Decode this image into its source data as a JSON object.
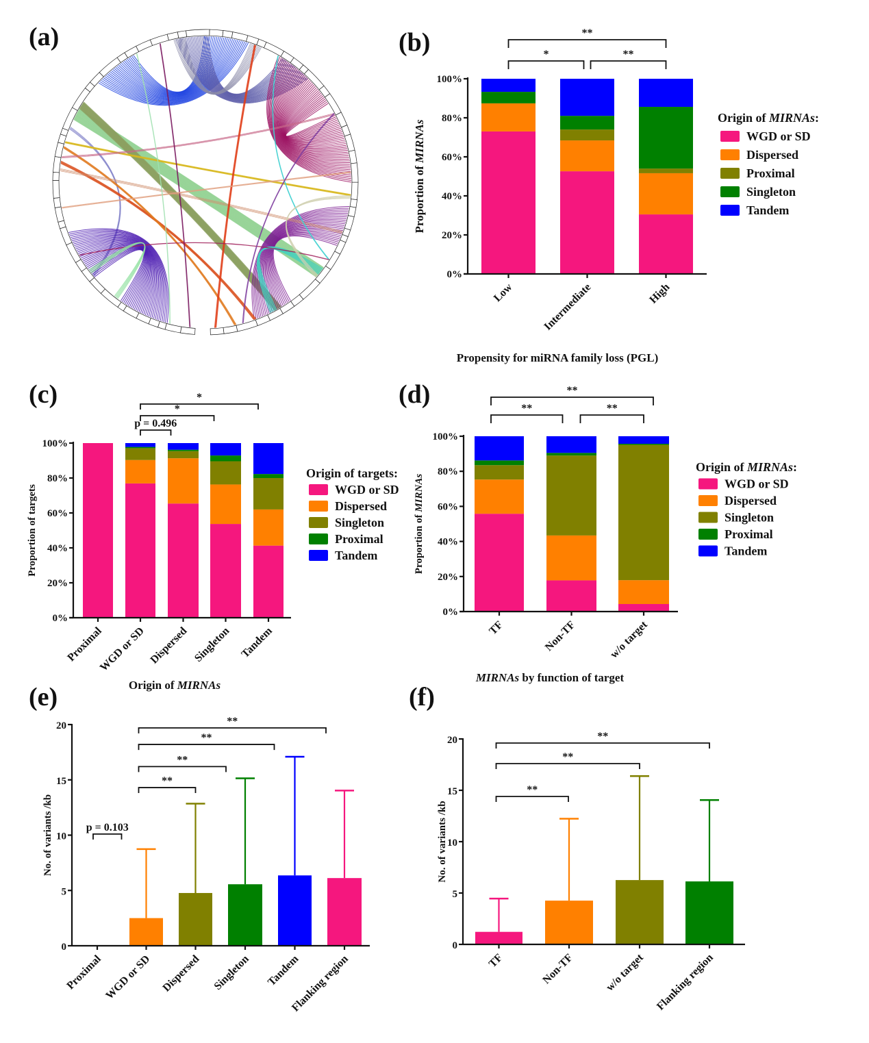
{
  "figure": {
    "panels": [
      "(a)",
      "(b)",
      "(c)",
      "(d)",
      "(e)",
      "(f)"
    ]
  },
  "colors": {
    "wgd": "#F5177E",
    "dispersed": "#FF8000",
    "olive": "#808000",
    "green": "#008000",
    "tandem": "#0000FF"
  },
  "chart_data": [
    {
      "id": "a",
      "type": "other",
      "description": "Circos plot of chromosomal segments with colored links between MIRNA loci",
      "title": ""
    },
    {
      "id": "b",
      "type": "bar",
      "stacked": true,
      "title": "",
      "xlabel": "Propensity for miRNA family loss (PGL)",
      "ylabel_prefix": "Proportion of ",
      "ylabel_italic": "MIRNAs",
      "ylim": [
        0,
        100
      ],
      "yticks": [
        "0%",
        "20%",
        "40%",
        "60%",
        "80%",
        "100%"
      ],
      "categories": [
        "Low",
        "Intermediate",
        "High"
      ],
      "legend_title_prefix": "Origin of ",
      "legend_title_italic": "MIRNAs",
      "legend_title_suffix": ":",
      "legend_position": "right",
      "series": [
        {
          "name": "WGD or SD",
          "color": "#F5177E",
          "values": [
            73.0,
            52.6,
            30.5
          ]
        },
        {
          "name": "Dispersed",
          "color": "#FF8000",
          "values": [
            14.4,
            15.8,
            21.1
          ]
        },
        {
          "name": "Proximal",
          "color": "#808000",
          "values": [
            0.0,
            5.6,
            2.4
          ]
        },
        {
          "name": "Singleton",
          "color": "#008000",
          "values": [
            5.9,
            7.0,
            31.6
          ]
        },
        {
          "name": "Tandem",
          "color": "#0000FF",
          "values": [
            6.7,
            19.0,
            14.4
          ]
        }
      ],
      "significance": [
        {
          "from": 0,
          "to": 1,
          "label": "*",
          "level": 1
        },
        {
          "from": 1,
          "to": 2,
          "label": "**",
          "level": 1
        },
        {
          "from": 0,
          "to": 2,
          "label": "**",
          "level": 2
        }
      ]
    },
    {
      "id": "c",
      "type": "bar",
      "stacked": true,
      "title": "",
      "xlabel_prefix": "Origin of ",
      "xlabel_italic": "MIRNAs",
      "ylabel": "Proportion of targets",
      "ylim": [
        0,
        100
      ],
      "yticks": [
        "0%",
        "20%",
        "40%",
        "60%",
        "80%",
        "100%"
      ],
      "categories": [
        "Proximal",
        "WGD or SD",
        "Dispersed",
        "Singleton",
        "Tandem"
      ],
      "legend_title": "Origin of targets:",
      "legend_position": "right",
      "series": [
        {
          "name": "WGD or SD",
          "color": "#F5177E",
          "values": [
            100.0,
            76.9,
            65.4,
            53.7,
            41.3
          ]
        },
        {
          "name": "Dispersed",
          "color": "#FF8000",
          "values": [
            0.0,
            13.4,
            25.9,
            22.6,
            20.7
          ]
        },
        {
          "name": "Singleton",
          "color": "#808000",
          "values": [
            0.0,
            6.8,
            4.1,
            13.3,
            18.0
          ]
        },
        {
          "name": "Proximal",
          "color": "#008000",
          "values": [
            0.0,
            0.7,
            0.8,
            3.3,
            2.3
          ]
        },
        {
          "name": "Tandem",
          "color": "#0000FF",
          "values": [
            0.0,
            2.2,
            3.8,
            7.1,
            17.7
          ]
        }
      ],
      "significance": [
        {
          "from": 1,
          "to": 2,
          "label": "p = 0.496",
          "level": 1
        },
        {
          "from": 1,
          "to": 3,
          "label": "*",
          "level": 2
        },
        {
          "from": 1,
          "to": 4,
          "label": "*",
          "level": 3
        }
      ]
    },
    {
      "id": "d",
      "type": "bar",
      "stacked": true,
      "title": "",
      "xlabel_italic": "MIRNAs",
      "xlabel_suffix": " by function of target",
      "ylabel_prefix": "Proportion of ",
      "ylabel_italic": "MIRNAs",
      "ylim": [
        0,
        100
      ],
      "yticks": [
        "0%",
        "20%",
        "40%",
        "60%",
        "80%",
        "100%"
      ],
      "categories": [
        "TF",
        "Non-TF",
        "w/o target"
      ],
      "legend_title_prefix": "Origin of ",
      "legend_title_italic": "MIRNAs",
      "legend_title_suffix": ":",
      "legend_position": "right",
      "series": [
        {
          "name": "WGD or SD",
          "color": "#F5177E",
          "values": [
            55.8,
            17.8,
            4.3
          ]
        },
        {
          "name": "Dispersed",
          "color": "#FF8000",
          "values": [
            19.5,
            25.6,
            13.6
          ]
        },
        {
          "name": "Singleton",
          "color": "#808000",
          "values": [
            8.2,
            45.6,
            77.2
          ]
        },
        {
          "name": "Proximal",
          "color": "#008000",
          "values": [
            2.7,
            1.5,
            0.6
          ]
        },
        {
          "name": "Tandem",
          "color": "#0000FF",
          "values": [
            13.8,
            9.5,
            4.3
          ]
        }
      ],
      "significance": [
        {
          "from": 0,
          "to": 1,
          "label": "**",
          "level": 1
        },
        {
          "from": 1,
          "to": 2,
          "label": "**",
          "level": 1
        },
        {
          "from": 0,
          "to": 2,
          "label": "**",
          "level": 2
        }
      ]
    },
    {
      "id": "e",
      "type": "bar",
      "title": "",
      "xlabel": "",
      "ylabel": "No. of variants /kb",
      "ylim": [
        0,
        20
      ],
      "yticks": [
        "0",
        "5",
        "10",
        "15",
        "20"
      ],
      "categories": [
        "Proximal",
        "WGD or SD",
        "Dispersed",
        "Singleton",
        "Tandem",
        "Flanking region"
      ],
      "colors": [
        "#F5177E",
        "#FF8000",
        "#808000",
        "#008000",
        "#0000FF",
        "#F5177E"
      ],
      "values": [
        0,
        2.5,
        4.77,
        5.56,
        6.36,
        6.12
      ],
      "error_upper": [
        0,
        8.74,
        12.85,
        15.14,
        17.09,
        14.03
      ],
      "significance": [
        {
          "from": 0,
          "to": 1,
          "label": "p = 0.103",
          "y": 10.1
        },
        {
          "from": 1,
          "to": 2,
          "label": "**",
          "y": 14.3
        },
        {
          "from": 1,
          "to": 3,
          "label": "**",
          "y": 16.2
        },
        {
          "from": 1,
          "to": 4,
          "label": "**",
          "y": 18.2
        },
        {
          "from": 1,
          "to": 5,
          "label": "**",
          "y": 19.7
        }
      ]
    },
    {
      "id": "f",
      "type": "bar",
      "title": "",
      "xlabel": "",
      "ylabel": "No. of variants /kb",
      "ylim": [
        0,
        20
      ],
      "yticks": [
        "0",
        "5",
        "10",
        "15",
        "20"
      ],
      "categories": [
        "TF",
        "Non-TF",
        "w/o target",
        "Flanking region"
      ],
      "colors": [
        "#F5177E",
        "#FF8000",
        "#808000",
        "#008000"
      ],
      "values": [
        1.22,
        4.26,
        6.26,
        6.13
      ],
      "error_upper": [
        4.46,
        12.23,
        16.38,
        14.05
      ],
      "significance": [
        {
          "from": 0,
          "to": 1,
          "label": "**",
          "y": 14.4
        },
        {
          "from": 0,
          "to": 2,
          "label": "**",
          "y": 17.6
        },
        {
          "from": 0,
          "to": 3,
          "label": "**",
          "y": 19.6
        }
      ]
    }
  ]
}
